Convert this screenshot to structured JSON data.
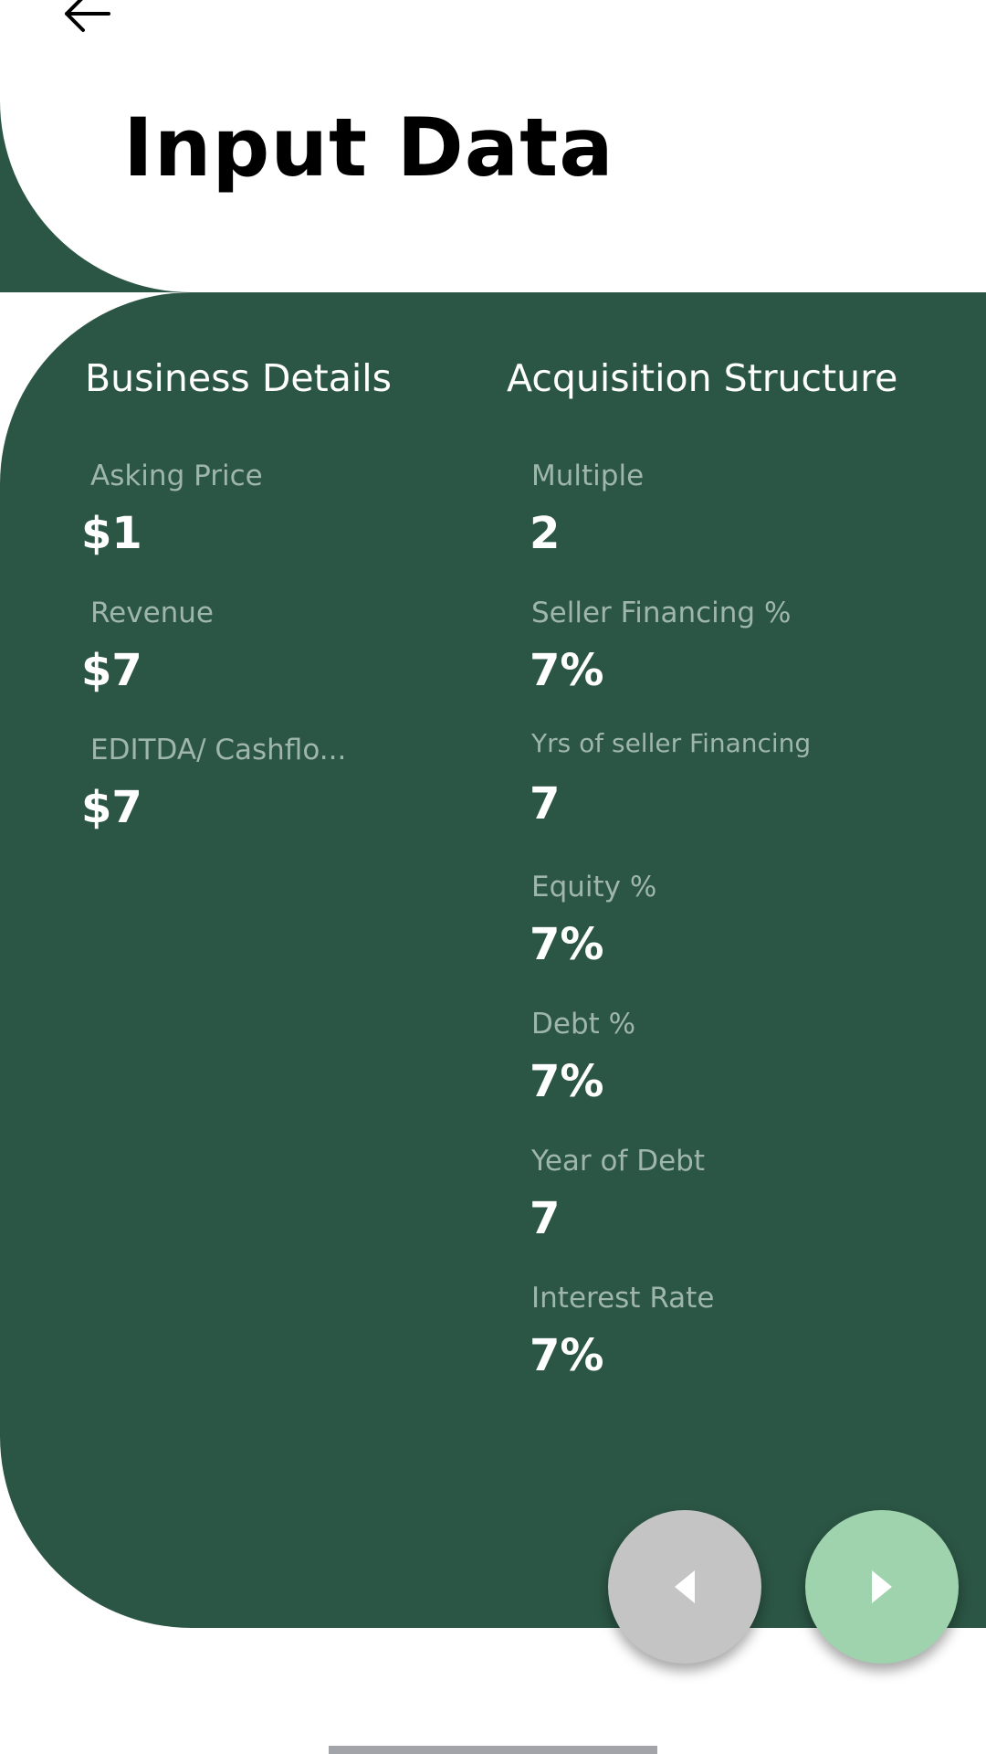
{
  "header": {
    "title": "Input Data"
  },
  "business_details": {
    "heading": "Business Details",
    "fields": [
      {
        "label": "Asking Price",
        "value": "$1"
      },
      {
        "label": "Revenue",
        "value": "$7"
      },
      {
        "label": "EDITDA/ Cashflo...",
        "value": "$7"
      }
    ]
  },
  "acquisition_structure": {
    "heading": "Acquisition Structure",
    "fields": [
      {
        "label": "Multiple",
        "value": "2"
      },
      {
        "label": "Seller Financing %",
        "value": "7%"
      },
      {
        "label": "Yrs of seller Financing",
        "value": "7"
      },
      {
        "label": "Equity %",
        "value": "7%"
      },
      {
        "label": "Debt %",
        "value": "7%"
      },
      {
        "label": "Year of Debt",
        "value": "7"
      },
      {
        "label": "Interest Rate",
        "value": "7%"
      }
    ]
  },
  "colors": {
    "card_background": "#2b5544",
    "label_text": "#9fb6aa",
    "prev_button": "#c4c4c4",
    "next_button": "#9fd3ad"
  },
  "icons": {
    "back": "arrow-left-icon",
    "prev": "triangle-left-icon",
    "next": "triangle-right-icon"
  }
}
